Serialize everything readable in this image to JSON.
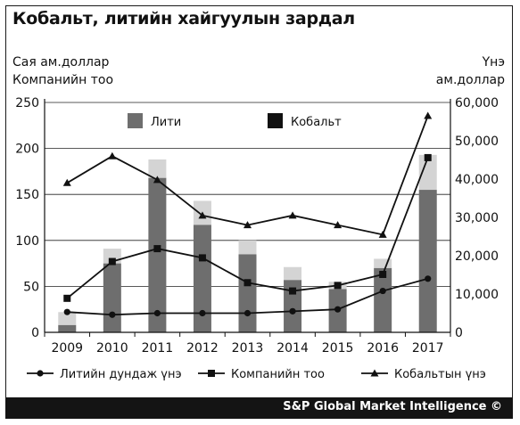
{
  "title": "Кобальт, литийн хайгуулын зардал",
  "footer": "S&P Global Market Intelligence ©",
  "chart_data": {
    "type": "bar+line",
    "categories": [
      "2009",
      "2010",
      "2011",
      "2012",
      "2013",
      "2014",
      "2015",
      "2016",
      "2017"
    ],
    "left_axis_label_line1": "Сая ам.доллар",
    "left_axis_label_line2": "Компанийн тоо",
    "right_axis_label_line1": "Үнэ",
    "right_axis_label_line2": "ам.доллар",
    "left_ylim": [
      0,
      250
    ],
    "left_ticks": [
      "0",
      "50",
      "100",
      "150",
      "200",
      "250"
    ],
    "right_ylim": [
      0,
      60000
    ],
    "right_ticks": [
      "0",
      "10,000",
      "20,000",
      "30,000",
      "40,000",
      "50,000",
      "60,000"
    ],
    "grid": true,
    "bars": [
      {
        "name": "Лити",
        "color": "#6e6e6e",
        "values": [
          8,
          75,
          168,
          117,
          85,
          57,
          47,
          70,
          155
        ]
      },
      {
        "name": "Кобальт",
        "color": "#d4d4d4",
        "values": [
          14,
          16,
          20,
          26,
          15,
          14,
          8,
          10,
          38
        ]
      }
    ],
    "lines": [
      {
        "name": "Литийн дундаж үнэ",
        "axis": "right",
        "marker": "circle",
        "values": [
          5300,
          4600,
          5000,
          5000,
          5000,
          5500,
          6000,
          10800,
          14000
        ]
      },
      {
        "name": "Компанийн тоо",
        "axis": "left",
        "marker": "square",
        "values": [
          37,
          77,
          91,
          81,
          54,
          45,
          51,
          63,
          190
        ]
      },
      {
        "name": "Кобальтын үнэ",
        "axis": "right",
        "marker": "triangle",
        "values": [
          39000,
          46000,
          39800,
          30500,
          28000,
          30500,
          28000,
          25500,
          56500
        ]
      }
    ],
    "top_legend": [
      {
        "label": "Лити",
        "swatch": "#6e6e6e"
      },
      {
        "label": "Кобальт",
        "swatch": "#111111"
      }
    ]
  }
}
